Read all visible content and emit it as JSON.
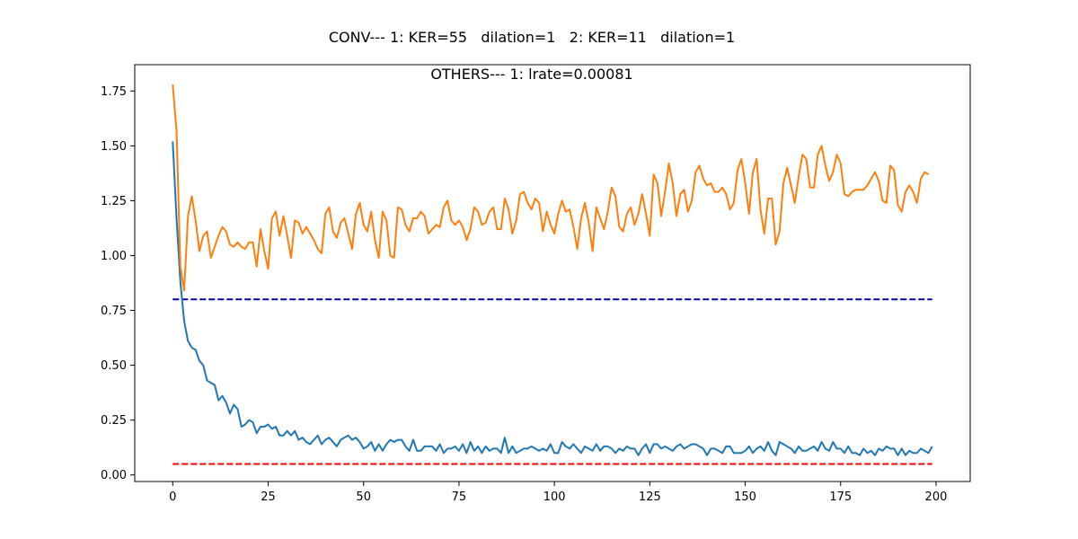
{
  "chart_data": {
    "type": "line",
    "title": "CONV--- 1: KER=55   dilation=1   2: KER=11   dilation=1",
    "subtitle": "OTHERS--- 1: lrate=0.00081",
    "xlabel": "",
    "ylabel": "",
    "xlim": [
      -9.95,
      208.95
    ],
    "ylim": [
      -0.03,
      1.87
    ],
    "xticks": [
      0,
      25,
      50,
      75,
      100,
      125,
      150,
      175,
      200
    ],
    "yticks": [
      0.0,
      0.25,
      0.5,
      0.75,
      1.0,
      1.25,
      1.5,
      1.75
    ],
    "grid": false,
    "legend": "none",
    "series": [
      {
        "color": "#1f77b4",
        "style": "solid",
        "x_start": 0,
        "x_step": 1,
        "values": [
          1.52,
          1.17,
          0.88,
          0.7,
          0.61,
          0.58,
          0.57,
          0.52,
          0.5,
          0.43,
          0.42,
          0.41,
          0.34,
          0.36,
          0.33,
          0.28,
          0.32,
          0.3,
          0.22,
          0.23,
          0.25,
          0.24,
          0.19,
          0.22,
          0.22,
          0.23,
          0.21,
          0.22,
          0.18,
          0.18,
          0.2,
          0.18,
          0.2,
          0.16,
          0.17,
          0.15,
          0.14,
          0.16,
          0.18,
          0.14,
          0.16,
          0.17,
          0.15,
          0.13,
          0.16,
          0.17,
          0.18,
          0.16,
          0.17,
          0.15,
          0.12,
          0.13,
          0.15,
          0.11,
          0.14,
          0.11,
          0.14,
          0.16,
          0.15,
          0.16,
          0.16,
          0.13,
          0.11,
          0.16,
          0.11,
          0.11,
          0.13,
          0.13,
          0.13,
          0.11,
          0.14,
          0.1,
          0.12,
          0.12,
          0.13,
          0.11,
          0.14,
          0.1,
          0.15,
          0.11,
          0.13,
          0.1,
          0.13,
          0.11,
          0.12,
          0.12,
          0.1,
          0.17,
          0.1,
          0.13,
          0.1,
          0.11,
          0.12,
          0.12,
          0.13,
          0.12,
          0.11,
          0.12,
          0.11,
          0.14,
          0.1,
          0.1,
          0.15,
          0.13,
          0.12,
          0.14,
          0.12,
          0.1,
          0.13,
          0.12,
          0.11,
          0.14,
          0.11,
          0.13,
          0.13,
          0.12,
          0.1,
          0.12,
          0.11,
          0.13,
          0.12,
          0.12,
          0.09,
          0.12,
          0.14,
          0.1,
          0.14,
          0.14,
          0.12,
          0.13,
          0.12,
          0.11,
          0.13,
          0.14,
          0.12,
          0.13,
          0.14,
          0.14,
          0.13,
          0.12,
          0.09,
          0.12,
          0.12,
          0.11,
          0.1,
          0.13,
          0.13,
          0.1,
          0.1,
          0.1,
          0.11,
          0.13,
          0.1,
          0.12,
          0.13,
          0.11,
          0.15,
          0.11,
          0.09,
          0.15,
          0.14,
          0.13,
          0.12,
          0.1,
          0.13,
          0.11,
          0.11,
          0.12,
          0.13,
          0.11,
          0.15,
          0.12,
          0.11,
          0.15,
          0.12,
          0.12,
          0.1,
          0.13,
          0.1,
          0.1,
          0.09,
          0.12,
          0.1,
          0.11,
          0.09,
          0.12,
          0.11,
          0.13,
          0.12,
          0.12,
          0.09,
          0.12,
          0.09,
          0.11,
          0.1,
          0.1,
          0.12,
          0.11,
          0.1,
          0.13
        ]
      },
      {
        "color": "#ff7f0e",
        "style": "solid",
        "x_start": 0,
        "x_step": 1,
        "values": [
          1.78,
          1.57,
          0.95,
          0.84,
          1.18,
          1.27,
          1.16,
          1.02,
          1.09,
          1.11,
          0.99,
          1.04,
          1.09,
          1.13,
          1.11,
          1.05,
          1.04,
          1.06,
          1.04,
          1.03,
          1.06,
          1.06,
          0.95,
          1.12,
          1.02,
          0.94,
          1.17,
          1.2,
          1.09,
          1.18,
          1.09,
          0.99,
          1.16,
          1.15,
          1.1,
          1.13,
          1.1,
          1.07,
          1.03,
          1.01,
          1.19,
          1.22,
          1.11,
          1.08,
          1.15,
          1.17,
          1.1,
          1.03,
          1.19,
          1.24,
          1.14,
          1.11,
          1.2,
          1.07,
          0.99,
          1.2,
          1.16,
          1.0,
          0.99,
          1.22,
          1.21,
          1.14,
          1.11,
          1.17,
          1.17,
          1.2,
          1.18,
          1.1,
          1.12,
          1.14,
          1.13,
          1.22,
          1.25,
          1.16,
          1.14,
          1.16,
          1.13,
          1.07,
          1.12,
          1.22,
          1.2,
          1.14,
          1.15,
          1.2,
          1.22,
          1.12,
          1.12,
          1.26,
          1.21,
          1.1,
          1.16,
          1.28,
          1.29,
          1.24,
          1.21,
          1.26,
          1.24,
          1.11,
          1.2,
          1.14,
          1.1,
          1.19,
          1.25,
          1.2,
          1.21,
          1.13,
          1.03,
          1.17,
          1.24,
          1.15,
          1.02,
          1.22,
          1.17,
          1.12,
          1.2,
          1.31,
          1.27,
          1.13,
          1.11,
          1.19,
          1.22,
          1.14,
          1.19,
          1.28,
          1.19,
          1.09,
          1.37,
          1.33,
          1.18,
          1.29,
          1.42,
          1.33,
          1.18,
          1.28,
          1.3,
          1.2,
          1.25,
          1.38,
          1.41,
          1.35,
          1.32,
          1.33,
          1.29,
          1.29,
          1.31,
          1.28,
          1.21,
          1.24,
          1.39,
          1.44,
          1.33,
          1.19,
          1.38,
          1.44,
          1.21,
          1.1,
          1.26,
          1.26,
          1.05,
          1.11,
          1.33,
          1.4,
          1.32,
          1.24,
          1.36,
          1.46,
          1.44,
          1.31,
          1.31,
          1.46,
          1.5,
          1.41,
          1.34,
          1.38,
          1.46,
          1.42,
          1.28,
          1.27,
          1.29,
          1.3,
          1.3,
          1.3,
          1.32,
          1.35,
          1.38,
          1.34,
          1.25,
          1.24,
          1.41,
          1.39,
          1.23,
          1.2,
          1.29,
          1.32,
          1.29,
          1.24,
          1.35,
          1.38,
          1.37
        ]
      }
    ],
    "reference_lines": [
      {
        "y": 0.8,
        "x_range": [
          0,
          199
        ],
        "color": "#0000aa",
        "style": "dashed"
      },
      {
        "y": 0.05,
        "x_range": [
          0,
          199
        ],
        "color": "#ff0000",
        "style": "dashed"
      }
    ]
  }
}
